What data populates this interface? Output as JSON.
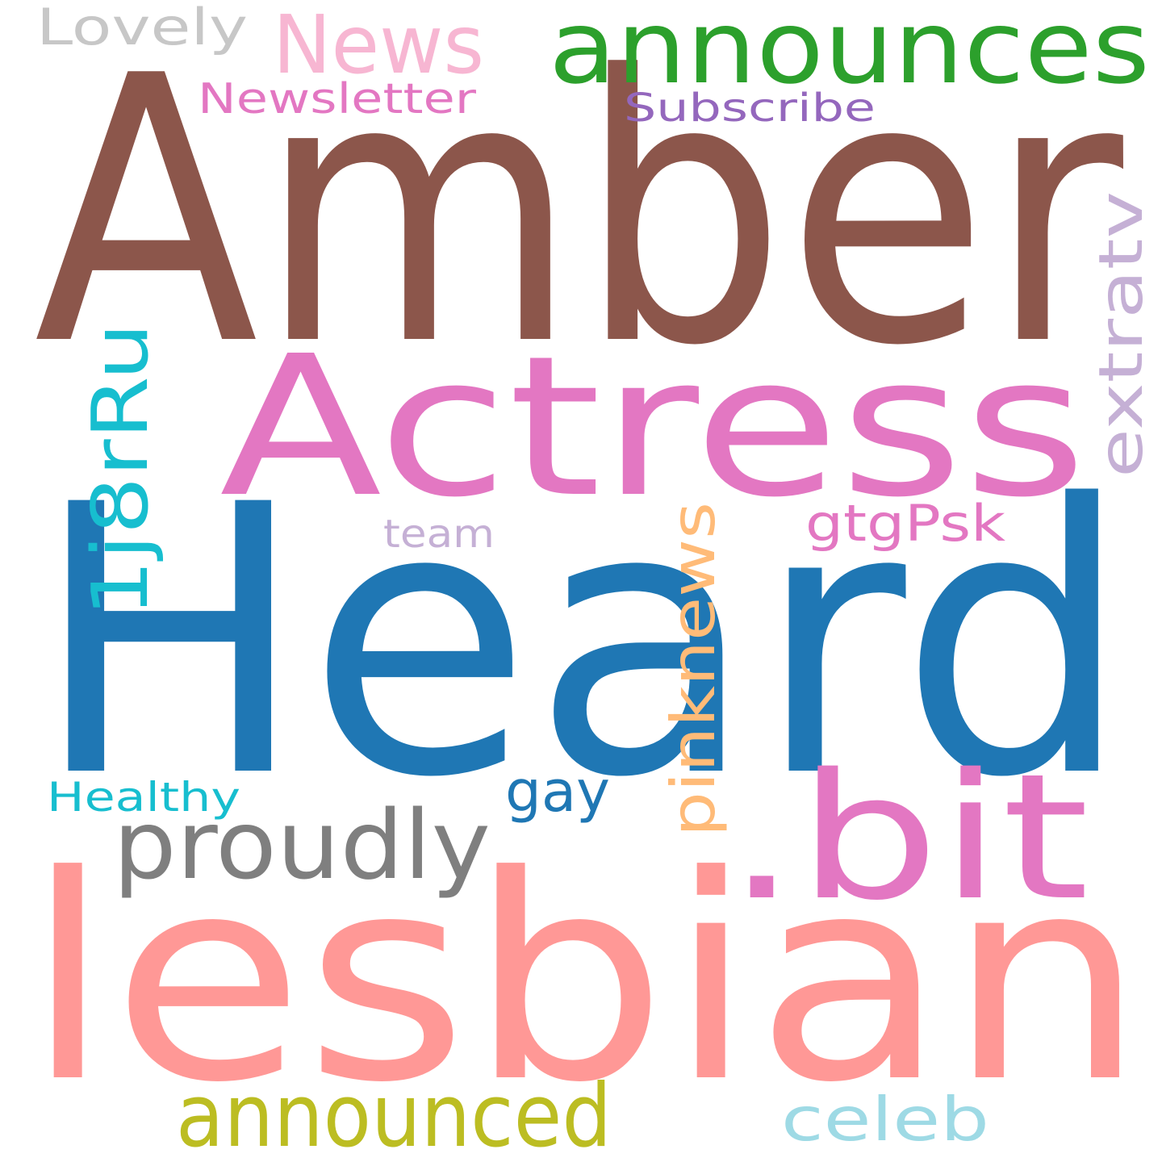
{
  "words": [
    {
      "id": "amber",
      "text": "Amber",
      "color": "#8c564b"
    },
    {
      "id": "heard",
      "text": "Heard",
      "color": "#1f77b4"
    },
    {
      "id": "lesbian",
      "text": "lesbian",
      "color": "#ff9896"
    },
    {
      "id": "actress",
      "text": "Actress",
      "color": "#e377c2"
    },
    {
      "id": "announces",
      "text": "announces",
      "color": "#2ca02c"
    },
    {
      "id": "bit",
      "text": ".bit",
      "color": "#e377c2"
    },
    {
      "id": "news",
      "text": "News",
      "color": "#f7b6d2"
    },
    {
      "id": "proudly",
      "text": "proudly",
      "color": "#7f7f7f"
    },
    {
      "id": "announced",
      "text": "announced",
      "color": "#bcbd22"
    },
    {
      "id": "1j8rru",
      "text": "1j8rRu",
      "color": "#17becf"
    },
    {
      "id": "extratv",
      "text": "extratv",
      "color": "#c5b0d5"
    },
    {
      "id": "pinknews",
      "text": "pinknews",
      "color": "#ffbb78"
    },
    {
      "id": "celeb",
      "text": "celeb",
      "color": "#9edae5"
    },
    {
      "id": "gtgpsk",
      "text": "gtgPsk",
      "color": "#e377c2"
    },
    {
      "id": "gay",
      "text": "gay",
      "color": "#1f77b4"
    },
    {
      "id": "lovely",
      "text": "Lovely",
      "color": "#c7c7c7"
    },
    {
      "id": "newsletter",
      "text": "Newsletter",
      "color": "#e377c2"
    },
    {
      "id": "subscribe",
      "text": "Subscribe",
      "color": "#9467bd"
    },
    {
      "id": "team",
      "text": "team",
      "color": "#c5b0d5"
    },
    {
      "id": "healthy",
      "text": "Healthy",
      "color": "#17becf"
    }
  ]
}
